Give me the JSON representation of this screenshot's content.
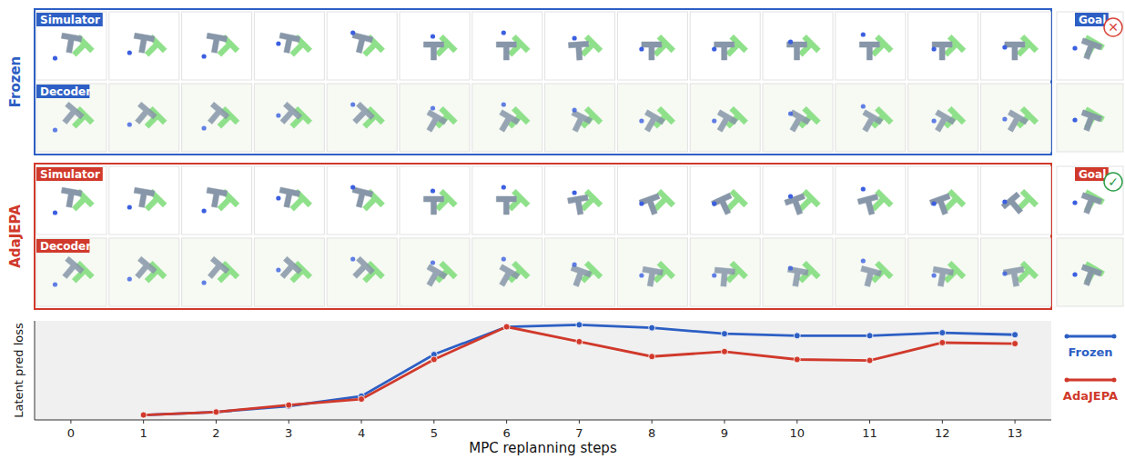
{
  "figure": {
    "rows": [
      {
        "name": "Frozen",
        "color": "#2d5fc4",
        "tracks": [
          "Simulator",
          "Decoder"
        ],
        "goal": "Goal",
        "status": "✕",
        "status_color": "#d9463b"
      },
      {
        "name": "AdaJEPA",
        "color": "#d0392b",
        "tracks": [
          "Simulator",
          "Decoder"
        ],
        "goal": "Goal",
        "status": "✓",
        "status_color": "#2e9e4a"
      }
    ]
  },
  "chart_data": {
    "type": "line",
    "x_label": "MPC replanning steps",
    "y_label": "Latent pred loss",
    "x": [
      1,
      2,
      3,
      4,
      5,
      6,
      7,
      8,
      9,
      10,
      11,
      12,
      13
    ],
    "xlim": [
      -0.5,
      13.5
    ],
    "xticks": [
      0,
      1,
      2,
      3,
      4,
      5,
      6,
      7,
      8,
      9,
      10,
      11,
      12,
      13
    ],
    "ylim": [
      0,
      1
    ],
    "tick_labels": "x",
    "grid": false,
    "legend": "right",
    "series": [
      {
        "name": "Frozen",
        "color": "#2d5fc4",
        "marker": "circle",
        "values": [
          0.05,
          0.08,
          0.14,
          0.24,
          0.66,
          0.94,
          0.96,
          0.93,
          0.87,
          0.85,
          0.85,
          0.88,
          0.86
        ]
      },
      {
        "name": "AdaJEPA",
        "color": "#d0392b",
        "marker": "circle",
        "values": [
          0.05,
          0.08,
          0.15,
          0.21,
          0.61,
          0.94,
          0.79,
          0.64,
          0.69,
          0.61,
          0.6,
          0.78,
          0.77
        ]
      }
    ]
  }
}
